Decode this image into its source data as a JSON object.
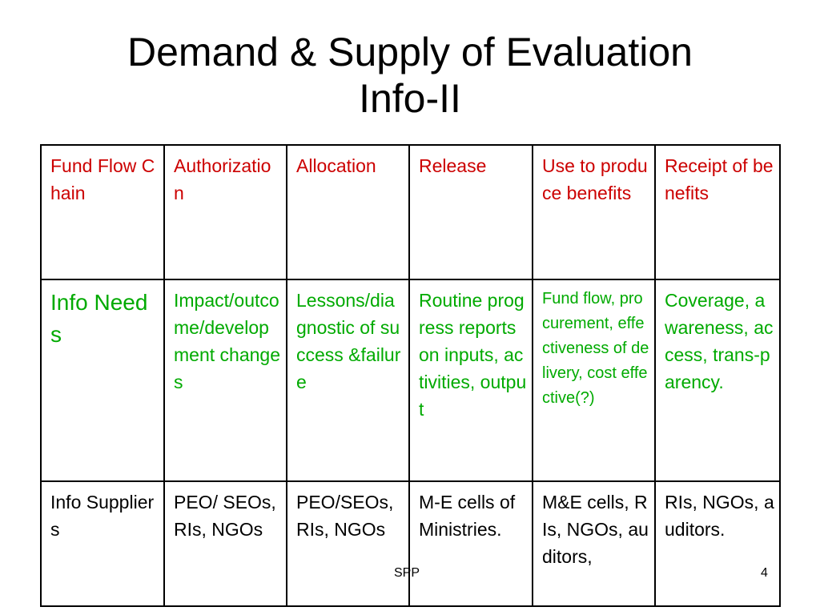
{
  "slide": {
    "title_line1": "Demand & Supply of Evaluation",
    "title_line2": "Info-II",
    "footer_text": "SPP",
    "page_number": "4",
    "colors": {
      "red": "#cc0000",
      "green": "#00aa00"
    }
  },
  "table": {
    "rows": [
      {
        "cells": [
          "Fund Flow Chain",
          "Authorization",
          "Allocation",
          "Release",
          "Use to produce benefits",
          "Receipt of benefits"
        ]
      },
      {
        "cells": [
          "Info Needs",
          "Impact/outcome/development changes",
          "Lessons/diagnostic of success &failure",
          "Routine progress reports on inputs, activities, output",
          "Fund flow, procurement, effectiveness of delivery, cost effective(?)",
          "Coverage, awareness, access, trans-parency."
        ]
      },
      {
        "cells": [
          "Info Suppliers",
          "PEO/ SEOs, RIs, NGOs",
          "PEO/SEOs, RIs, NGOs",
          "M-E cells of Ministries.",
          "M&E cells, RIs, NGOs, auditors,",
          "RIs, NGOs, auditors."
        ]
      }
    ]
  }
}
